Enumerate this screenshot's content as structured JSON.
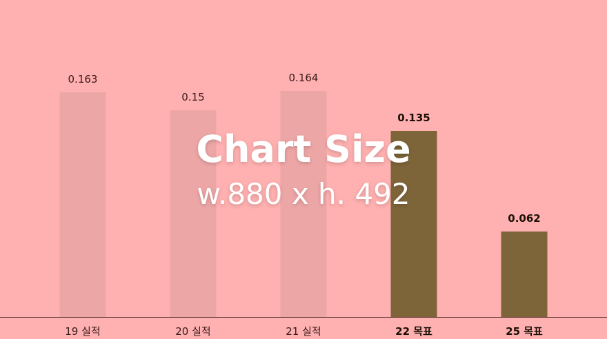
{
  "chart_data": {
    "type": "bar",
    "categories": [
      "19 실적",
      "20 실적",
      "21 실적",
      "22 목표",
      "25 목표"
    ],
    "values": [
      0.163,
      0.15,
      0.164,
      0.135,
      0.062
    ],
    "value_labels": [
      "0.163",
      "0.15",
      "0.164",
      "0.135",
      "0.062"
    ],
    "ylim": [
      0,
      0.2
    ],
    "grid": false,
    "highlighted": [
      false,
      false,
      false,
      true,
      true
    ],
    "colors": {
      "background": "#ffb0b0",
      "bar_muted": "#eda6a6",
      "bar_highlight": "#7e6539",
      "label_muted": "#3a1a1a",
      "label_highlight": "#1a0f05",
      "axis": "#5a3030"
    }
  },
  "overlay": {
    "title": "Chart Size",
    "subtitle": "w.880 x h. 492"
  }
}
